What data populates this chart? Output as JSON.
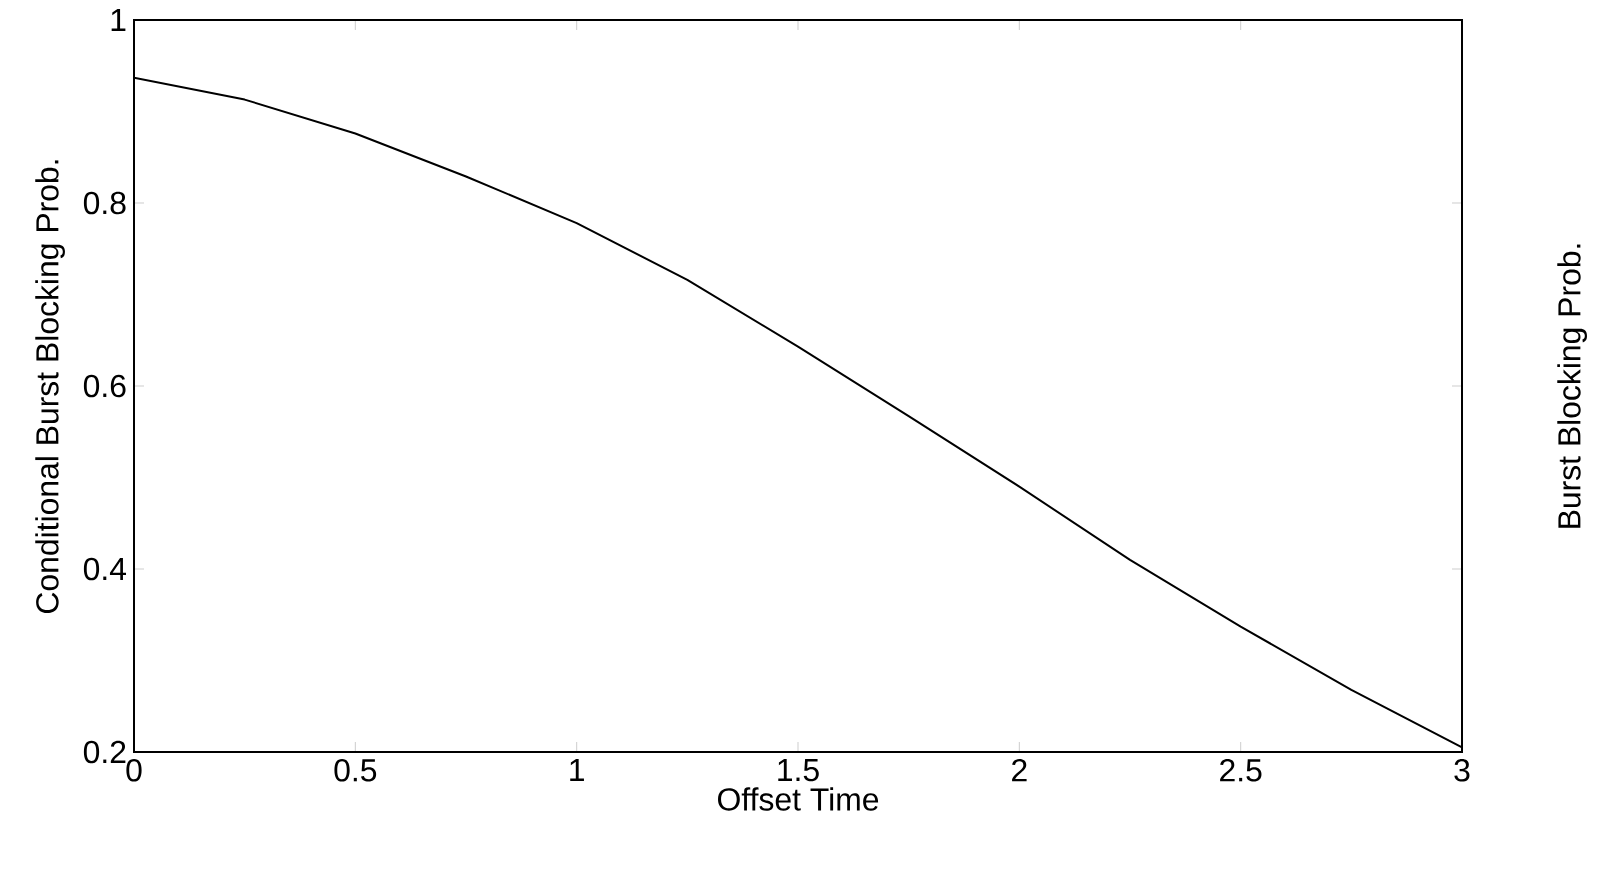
{
  "chart_data": {
    "type": "line",
    "xlabel": "Offset Time",
    "ylabel": "Conditional Burst Blocking Prob.",
    "x": [
      0,
      0.25,
      0.5,
      0.75,
      1,
      1.25,
      1.5,
      1.75,
      2,
      2.25,
      2.5,
      2.75,
      3
    ],
    "series": [
      {
        "color": "#000000",
        "values": [
          0.937,
          0.913,
          0.876,
          0.829,
          0.778,
          0.716,
          0.643,
          0.567,
          0.49,
          0.41,
          0.337,
          0.268,
          0.205
        ]
      }
    ],
    "xlim": [
      0,
      3
    ],
    "ylim": [
      0.2,
      1
    ],
    "xticks": [
      0,
      0.5,
      1,
      1.5,
      2,
      2.5,
      3
    ],
    "yticks": [
      0.2,
      0.4,
      0.6,
      0.8,
      1
    ],
    "grid": false,
    "marker": "none",
    "line_style": "solid",
    "annotations": [
      "Burst Blocking Prob."
    ]
  }
}
